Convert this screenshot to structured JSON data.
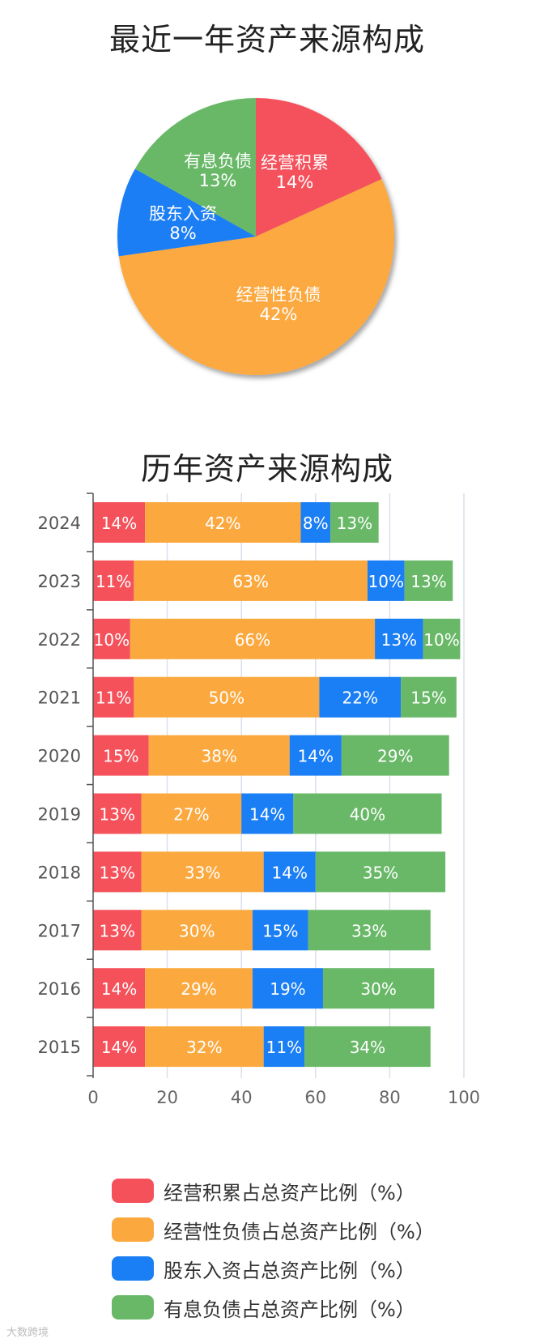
{
  "titles": {
    "pie": "最近一年资产来源构成",
    "bar": "历年资产来源构成"
  },
  "colors": {
    "red": "#f5515b",
    "orange": "#fba93f",
    "blue": "#1a7ef5",
    "green": "#69b867"
  },
  "watermark": "大数跨境",
  "chart_data": [
    {
      "type": "pie",
      "title": "最近一年资产来源构成",
      "slices": [
        {
          "label": "经营积累",
          "value": 14,
          "display": "14%",
          "color": "#f5515b"
        },
        {
          "label": "经营性负债",
          "value": 42,
          "display": "42%",
          "color": "#fba93f"
        },
        {
          "label": "股东入资",
          "value": 8,
          "display": "8%",
          "color": "#1a7ef5"
        },
        {
          "label": "有息负债",
          "value": 13,
          "display": "13%",
          "color": "#69b867"
        }
      ]
    },
    {
      "type": "bar",
      "orientation": "horizontal",
      "stacked": true,
      "title": "历年资产来源构成",
      "categories": [
        "2024",
        "2023",
        "2022",
        "2021",
        "2020",
        "2019",
        "2018",
        "2017",
        "2016",
        "2015"
      ],
      "xlim": [
        0,
        100
      ],
      "xticks": [
        0,
        20,
        40,
        60,
        80,
        100
      ],
      "grid": true,
      "legend_position": "bottom",
      "series": [
        {
          "name": "经营积累占总资产比例（%）",
          "color": "#f5515b",
          "values": [
            14,
            11,
            10,
            11,
            15,
            13,
            13,
            13,
            14,
            14
          ]
        },
        {
          "name": "经营性负债占总资产比例（%）",
          "color": "#fba93f",
          "values": [
            42,
            63,
            66,
            50,
            38,
            27,
            33,
            30,
            29,
            32
          ]
        },
        {
          "name": "股东入资占总资产比例（%）",
          "color": "#1a7ef5",
          "values": [
            8,
            10,
            13,
            22,
            14,
            14,
            14,
            15,
            19,
            11
          ]
        },
        {
          "name": "有息负债占总资产比例（%）",
          "color": "#69b867",
          "values": [
            13,
            13,
            10,
            15,
            29,
            40,
            35,
            33,
            30,
            34
          ]
        }
      ]
    }
  ]
}
